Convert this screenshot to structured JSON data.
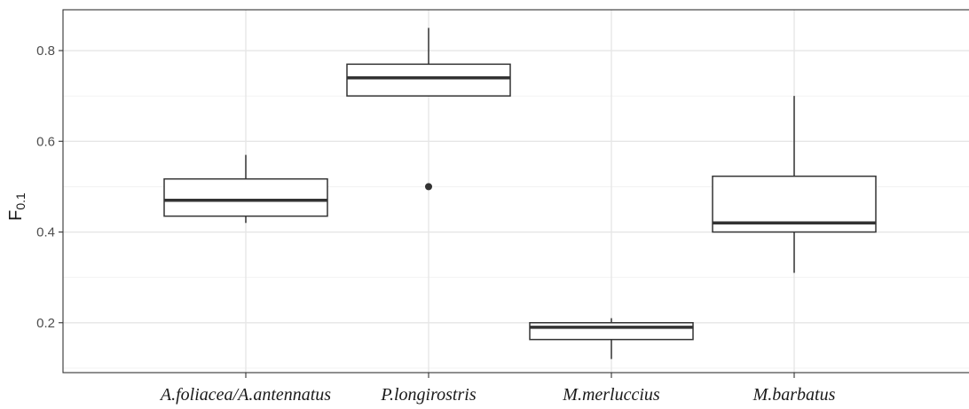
{
  "chart_data": {
    "type": "boxplot",
    "title": "",
    "xlabel": "",
    "ylabel": "F",
    "ylabel_subscript": "0.1",
    "ylim": [
      0.09,
      0.89
    ],
    "y_major_ticks": [
      0.2,
      0.4,
      0.6,
      0.8
    ],
    "y_tick_labels": [
      "0.2",
      "0.4",
      "0.6",
      "0.8"
    ],
    "grid": true,
    "categories": [
      "A.foliacea/A.antennatus",
      "P.longirostris",
      "M.merluccius",
      "M.barbatus"
    ],
    "boxes": [
      {
        "q1": 0.435,
        "median": 0.47,
        "q3": 0.517,
        "whisker_low": 0.42,
        "whisker_high": 0.57,
        "outliers": []
      },
      {
        "q1": 0.7,
        "median": 0.74,
        "q3": 0.77,
        "whisker_low": 0.7,
        "whisker_high": 0.85,
        "outliers": [
          0.5
        ]
      },
      {
        "q1": 0.163,
        "median": 0.19,
        "q3": 0.2,
        "whisker_low": 0.12,
        "whisker_high": 0.21,
        "outliers": []
      },
      {
        "q1": 0.4,
        "median": 0.42,
        "q3": 0.523,
        "whisker_low": 0.31,
        "whisker_high": 0.7,
        "outliers": []
      }
    ]
  }
}
